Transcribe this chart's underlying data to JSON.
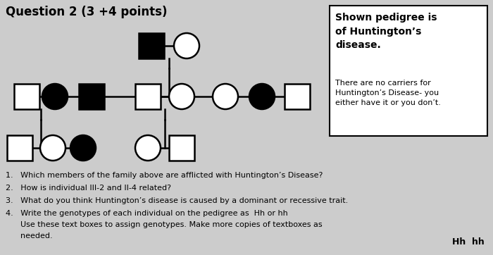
{
  "title": "Question 2 (3 +4 points)",
  "bg_color": "#cccccc",
  "box_title": "Shown pedigree is\nof Huntington’s\ndisease.",
  "box_subtitle": "There are no carriers for\nHuntington’s Disease- you\neither have it or you don’t.",
  "q1": "1.   Which members of the family above are afflicted with Huntington’s Disease?",
  "q2": "2.   How is individual III-2 and II-4 related?",
  "q3": "3.   What do you think Huntington’s disease is caused by a dominant or recessive trait.",
  "q4a": "4.   Write the genotypes of each individual on the pedigree as  Hh or hh",
  "q4b": "      Use these text boxes to assign genotypes. Make more copies of textboxes as",
  "q4c": "      needed.",
  "hh_text": "Hh  hh",
  "sym_size": 0.055,
  "lw": 1.8
}
